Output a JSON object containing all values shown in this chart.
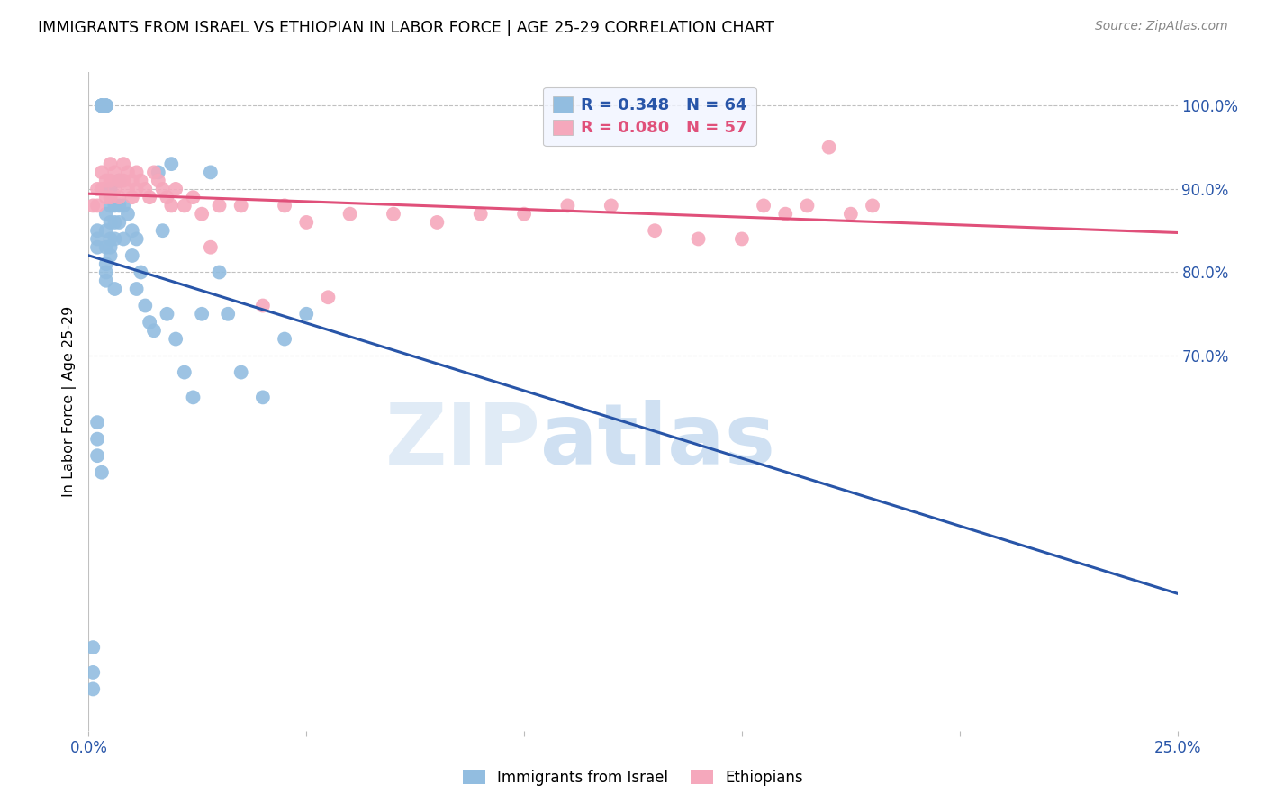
{
  "title": "IMMIGRANTS FROM ISRAEL VS ETHIOPIAN IN LABOR FORCE | AGE 25-29 CORRELATION CHART",
  "source": "Source: ZipAtlas.com",
  "ylabel": "In Labor Force | Age 25-29",
  "xlim": [
    0.0,
    0.25
  ],
  "ylim": [
    0.25,
    1.04
  ],
  "xtick_positions": [
    0.0,
    0.05,
    0.1,
    0.15,
    0.2,
    0.25
  ],
  "xtick_labels": [
    "0.0%",
    "",
    "",
    "",
    "",
    "25.0%"
  ],
  "ytick_positions": [
    0.7,
    0.8,
    0.9,
    1.0
  ],
  "ytick_labels": [
    "70.0%",
    "80.0%",
    "90.0%",
    "100.0%"
  ],
  "israel_R": 0.348,
  "israel_N": 64,
  "ethiopia_R": 0.08,
  "ethiopia_N": 57,
  "israel_dot_color": "#92bde0",
  "israel_line_color": "#2855a8",
  "ethiopia_dot_color": "#f5a8bc",
  "ethiopia_line_color": "#e0507a",
  "israel_x": [
    0.001,
    0.001,
    0.001,
    0.002,
    0.002,
    0.002,
    0.002,
    0.002,
    0.002,
    0.003,
    0.003,
    0.003,
    0.003,
    0.003,
    0.003,
    0.004,
    0.004,
    0.004,
    0.004,
    0.004,
    0.004,
    0.004,
    0.004,
    0.004,
    0.004,
    0.005,
    0.005,
    0.005,
    0.005,
    0.005,
    0.005,
    0.006,
    0.006,
    0.006,
    0.006,
    0.007,
    0.007,
    0.007,
    0.008,
    0.008,
    0.009,
    0.01,
    0.01,
    0.011,
    0.011,
    0.012,
    0.013,
    0.014,
    0.015,
    0.016,
    0.017,
    0.018,
    0.019,
    0.02,
    0.022,
    0.024,
    0.026,
    0.028,
    0.03,
    0.032,
    0.035,
    0.04,
    0.045,
    0.05
  ],
  "israel_y": [
    0.3,
    0.32,
    0.35,
    0.85,
    0.84,
    0.83,
    0.62,
    0.6,
    0.58,
    1.0,
    1.0,
    1.0,
    1.0,
    1.0,
    0.56,
    1.0,
    1.0,
    1.0,
    1.0,
    0.87,
    0.85,
    0.83,
    0.81,
    0.8,
    0.79,
    0.9,
    0.88,
    0.86,
    0.84,
    0.83,
    0.82,
    0.88,
    0.86,
    0.84,
    0.78,
    0.91,
    0.88,
    0.86,
    0.88,
    0.84,
    0.87,
    0.85,
    0.82,
    0.84,
    0.78,
    0.8,
    0.76,
    0.74,
    0.73,
    0.92,
    0.85,
    0.75,
    0.93,
    0.72,
    0.68,
    0.65,
    0.75,
    0.92,
    0.8,
    0.75,
    0.68,
    0.65,
    0.72,
    0.75
  ],
  "ethiopia_x": [
    0.001,
    0.002,
    0.002,
    0.003,
    0.003,
    0.004,
    0.004,
    0.005,
    0.005,
    0.005,
    0.006,
    0.006,
    0.007,
    0.007,
    0.008,
    0.008,
    0.009,
    0.009,
    0.01,
    0.01,
    0.011,
    0.011,
    0.012,
    0.013,
    0.014,
    0.015,
    0.016,
    0.017,
    0.018,
    0.019,
    0.02,
    0.022,
    0.024,
    0.026,
    0.028,
    0.03,
    0.035,
    0.04,
    0.045,
    0.05,
    0.055,
    0.06,
    0.07,
    0.08,
    0.09,
    0.1,
    0.11,
    0.12,
    0.13,
    0.14,
    0.15,
    0.155,
    0.16,
    0.165,
    0.17,
    0.175,
    0.18
  ],
  "ethiopia_y": [
    0.88,
    0.9,
    0.88,
    0.92,
    0.9,
    0.91,
    0.89,
    0.93,
    0.91,
    0.89,
    0.92,
    0.9,
    0.91,
    0.89,
    0.93,
    0.91,
    0.92,
    0.9,
    0.91,
    0.89,
    0.92,
    0.9,
    0.91,
    0.9,
    0.89,
    0.92,
    0.91,
    0.9,
    0.89,
    0.88,
    0.9,
    0.88,
    0.89,
    0.87,
    0.83,
    0.88,
    0.88,
    0.76,
    0.88,
    0.86,
    0.77,
    0.87,
    0.87,
    0.86,
    0.87,
    0.87,
    0.88,
    0.88,
    0.85,
    0.84,
    0.84,
    0.88,
    0.87,
    0.88,
    0.95,
    0.87,
    0.88
  ]
}
